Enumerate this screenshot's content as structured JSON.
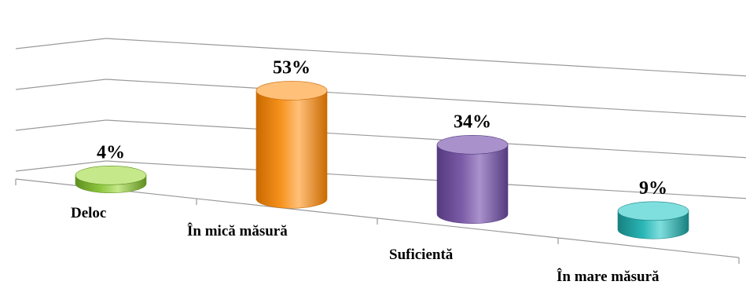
{
  "chart_data": {
    "type": "bar",
    "style": "3d-cylinder",
    "categories": [
      "Deloc",
      "În mică măsură",
      "Suficientă",
      "În mare măsură"
    ],
    "values": [
      4,
      53,
      34,
      9
    ],
    "data_labels": [
      "4%",
      "53%",
      "34%",
      "9%"
    ],
    "ylim": [
      0,
      60
    ],
    "grid": true,
    "legend": "none",
    "colors": [
      "#8cc63f",
      "#f7931e",
      "#7b5ba6",
      "#2ab5b5"
    ],
    "colors_dark": [
      "#5f8f1f",
      "#c96a00",
      "#553a80",
      "#178080"
    ],
    "colors_light": [
      "#c5e88a",
      "#ffc07a",
      "#a992cc",
      "#7fdede"
    ]
  }
}
